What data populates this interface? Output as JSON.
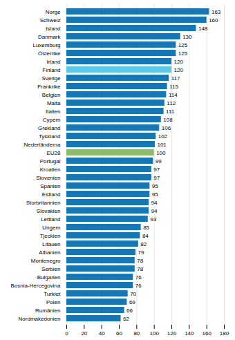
{
  "chart_data": {
    "type": "bar",
    "orientation": "horizontal",
    "categories": [
      "Norge",
      "Schweiz",
      "Island",
      "Danmark",
      "Luxemburg",
      "Österrike",
      "Irland",
      "Finland",
      "Sverige",
      "Frankrike",
      "Belgien",
      "Malta",
      "Italien",
      "Cypern",
      "Grekland",
      "Tyskland",
      "Nederländerna",
      "EU28",
      "Portugal",
      "Kroatien",
      "Slovenien",
      "Spanien",
      "Estland",
      "Storbritannien",
      "Slovakien",
      "Lettland",
      "Ungern",
      "Tjeckien",
      "Litauen",
      "Albanien",
      "Montenegro",
      "Serbien",
      "Bulgarien",
      "Bosnia-Hercegovina",
      "Turkiet",
      "Polen",
      "Rumänien",
      "Nordmakedonien"
    ],
    "values": [
      163,
      160,
      148,
      130,
      125,
      125,
      120,
      120,
      117,
      115,
      114,
      112,
      111,
      108,
      106,
      102,
      101,
      100,
      99,
      97,
      97,
      95,
      95,
      94,
      94,
      93,
      85,
      84,
      82,
      79,
      78,
      78,
      76,
      76,
      70,
      69,
      66,
      62
    ],
    "colors": [
      "#1777b4",
      "#1777b4",
      "#1777b4",
      "#1777b4",
      "#1777b4",
      "#1777b4",
      "#1777b4",
      "#5bc8e8",
      "#1777b4",
      "#1777b4",
      "#1777b4",
      "#1777b4",
      "#1777b4",
      "#1777b4",
      "#1777b4",
      "#1777b4",
      "#1777b4",
      "#8db96e",
      "#1777b4",
      "#1777b4",
      "#1777b4",
      "#1777b4",
      "#1777b4",
      "#1777b4",
      "#1777b4",
      "#1777b4",
      "#1777b4",
      "#1777b4",
      "#1777b4",
      "#1777b4",
      "#1777b4",
      "#1777b4",
      "#1777b4",
      "#1777b4",
      "#1777b4",
      "#1777b4",
      "#1777b4",
      "#1777b4"
    ],
    "xlim": [
      0,
      180
    ],
    "xticks": [
      0,
      20,
      40,
      60,
      80,
      100,
      120,
      140,
      160,
      180
    ],
    "grid": true,
    "data_labels": true
  }
}
